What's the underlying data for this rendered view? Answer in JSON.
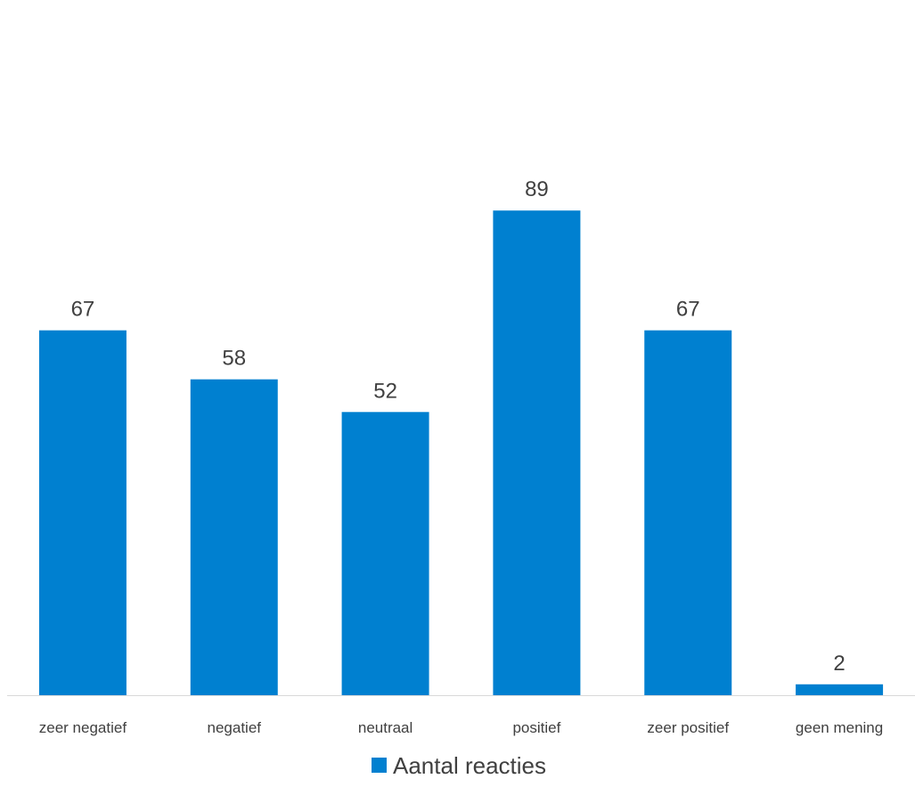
{
  "chart_data": {
    "type": "bar",
    "title": "",
    "xlabel": "",
    "ylabel": "",
    "categories": [
      "zeer negatief",
      "negatief",
      "neutraal",
      "positief",
      "zeer positief",
      "geen mening"
    ],
    "series": [
      {
        "name": "Aantal reacties",
        "values": [
          67,
          58,
          52,
          89,
          67,
          2
        ],
        "color": "#0080D0"
      }
    ],
    "ylim": [
      0,
      95
    ],
    "grid": false,
    "data_labels": true,
    "legend": {
      "position": "bottom",
      "entries": [
        "Aantal reacties"
      ]
    }
  },
  "colors": {
    "bar": "#0080D0",
    "axis": "#D9D9D9",
    "text": "#404040"
  }
}
